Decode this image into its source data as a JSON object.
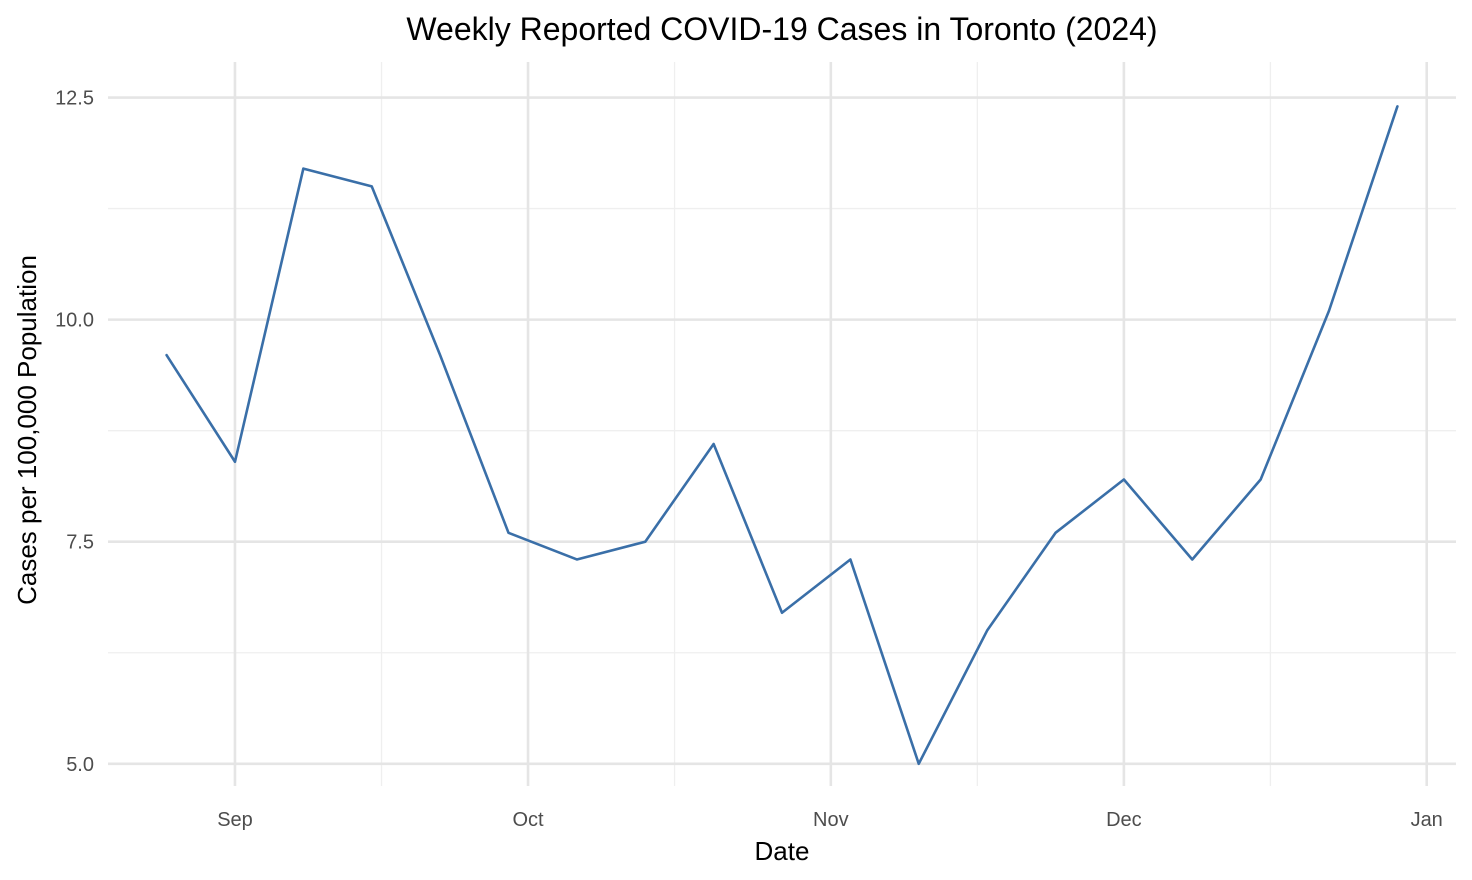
{
  "chart_data": {
    "type": "line",
    "title": "Weekly Reported COVID-19 Cases in Toronto (2024)",
    "xlabel": "Date",
    "ylabel": "Cases per 100,000 Population",
    "x": [
      "2024-08-25",
      "2024-09-01",
      "2024-09-08",
      "2024-09-15",
      "2024-09-22",
      "2024-09-29",
      "2024-10-06",
      "2024-10-13",
      "2024-10-20",
      "2024-10-27",
      "2024-11-03",
      "2024-11-10",
      "2024-11-17",
      "2024-11-24",
      "2024-12-01",
      "2024-12-08",
      "2024-12-15",
      "2024-12-22",
      "2024-12-29"
    ],
    "series": [
      {
        "values": [
          9.6,
          8.4,
          11.7,
          11.5,
          9.6,
          7.6,
          7.3,
          7.5,
          8.6,
          6.7,
          7.3,
          5.0,
          6.5,
          7.6,
          8.2,
          7.3,
          8.2,
          10.1,
          12.4
        ],
        "color": "#3a6fa8"
      }
    ],
    "xlim": [
      "2024-08-19",
      "2025-01-04"
    ],
    "ylim": [
      4.75,
      12.9
    ],
    "x_ticks": [
      {
        "date": "2024-09-01",
        "label": "Sep"
      },
      {
        "date": "2024-10-01",
        "label": "Oct"
      },
      {
        "date": "2024-11-01",
        "label": "Nov"
      },
      {
        "date": "2024-12-01",
        "label": "Dec"
      },
      {
        "date": "2025-01-01",
        "label": "Jan"
      }
    ],
    "x_minor_ticks": [
      "2024-09-16",
      "2024-10-16",
      "2024-11-16",
      "2024-12-16"
    ],
    "y_ticks": [
      {
        "value": 5.0,
        "label": "5.0"
      },
      {
        "value": 7.5,
        "label": "7.5"
      },
      {
        "value": 10.0,
        "label": "10.0"
      },
      {
        "value": 12.5,
        "label": "12.5"
      }
    ],
    "y_minor_ticks": [
      6.25,
      8.75,
      11.25
    ],
    "grid": true,
    "legend": "none",
    "theme": "minimal"
  }
}
